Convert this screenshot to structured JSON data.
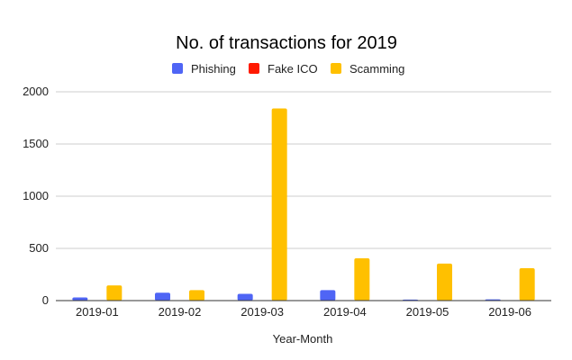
{
  "chart_data": {
    "type": "bar",
    "title": "No. of transactions for 2019",
    "xlabel": "Year-Month",
    "ylabel": "",
    "ylim": [
      0,
      2000
    ],
    "yticks": [
      0,
      500,
      1000,
      1500,
      2000
    ],
    "grid": true,
    "legend_position": "top",
    "categories": [
      "2019-01",
      "2019-02",
      "2019-03",
      "2019-04",
      "2019-05",
      "2019-06"
    ],
    "series": [
      {
        "name": "Phishing",
        "color": "#4f65f5",
        "values": [
          30,
          75,
          65,
          100,
          10,
          12
        ]
      },
      {
        "name": "Fake ICO",
        "color": "#ff1a00",
        "values": [
          0,
          0,
          0,
          0,
          0,
          0
        ]
      },
      {
        "name": "Scamming",
        "color": "#ffc000",
        "values": [
          145,
          100,
          1840,
          405,
          355,
          310
        ]
      }
    ]
  }
}
